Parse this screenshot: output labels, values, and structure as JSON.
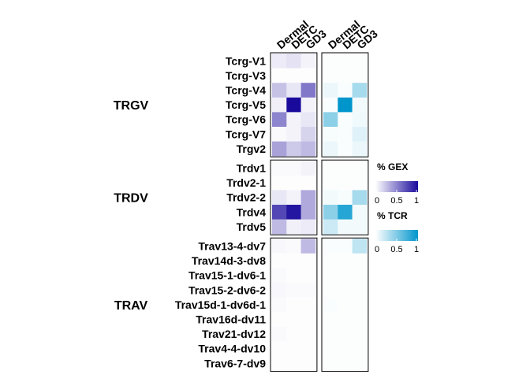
{
  "chart_data": {
    "type": "heatmap",
    "columns": [
      "Dermal",
      "DETC",
      "GD3"
    ],
    "groups": [
      {
        "label": "TRGV",
        "rows": [
          "Tcrg-V1",
          "Tcrg-V3",
          "Tcrg-V4",
          "Tcrg-V5",
          "Tcrg-V6",
          "Tcrg-V7",
          "Trgv2"
        ]
      },
      {
        "label": "TRDV",
        "rows": [
          "Trdv1",
          "Trdv2-1",
          "Trdv2-2",
          "Trdv4",
          "Trdv5"
        ]
      },
      {
        "label": "TRAV",
        "rows": [
          "Trav13-4-dv7",
          "Trav14d-3-dv8",
          "Trav15-1-dv6-1",
          "Trav15-2-dv6-2",
          "Trav15d-1-dv6d-1",
          "Trav16d-dv11",
          "Trav21-dv12",
          "Trav4-4-dv10",
          "Trav6-7-dv9"
        ]
      }
    ],
    "panels": [
      {
        "name": "% GEX",
        "color_low": "#ffffff",
        "color_high": "#1a0a9c",
        "range": [
          0,
          1
        ],
        "values": [
          [
            0.08,
            0.12,
            0.05
          ],
          [
            0.01,
            0.01,
            0.01
          ],
          [
            0.25,
            0.1,
            0.55
          ],
          [
            0.06,
            1.0,
            0.05
          ],
          [
            0.5,
            0.05,
            0.1
          ],
          [
            0.02,
            0.05,
            0.18
          ],
          [
            0.38,
            0.22,
            0.28
          ],
          [
            0.02,
            0.02,
            0.05
          ],
          [
            0.01,
            0.01,
            0.01
          ],
          [
            0.1,
            0.05,
            0.35
          ],
          [
            0.75,
            0.95,
            0.35
          ],
          [
            0.28,
            0.06,
            0.08
          ],
          [
            0.03,
            0.02,
            0.28
          ],
          [
            0.01,
            0.01,
            0.01
          ],
          [
            0.02,
            0.01,
            0.01
          ],
          [
            0.03,
            0.02,
            0.02
          ],
          [
            0.02,
            0.01,
            0.01
          ],
          [
            0.01,
            0.01,
            0.01
          ],
          [
            0.02,
            0.01,
            0.01
          ],
          [
            0.01,
            0.01,
            0.01
          ],
          [
            0.01,
            0.01,
            0.01
          ]
        ]
      },
      {
        "name": "% TCR",
        "color_low": "#ffffff",
        "color_high": "#0096cc",
        "range": [
          0,
          1
        ],
        "values": [
          [
            0.01,
            0.01,
            0.01
          ],
          [
            0.01,
            0.01,
            0.01
          ],
          [
            0.08,
            0.02,
            0.35
          ],
          [
            0.02,
            1.0,
            0.05
          ],
          [
            0.45,
            0.02,
            0.06
          ],
          [
            0.03,
            0.02,
            0.12
          ],
          [
            0.08,
            0.02,
            0.08
          ],
          [
            0.01,
            0.01,
            0.01
          ],
          [
            0.01,
            0.01,
            0.01
          ],
          [
            0.05,
            0.03,
            0.35
          ],
          [
            0.45,
            0.85,
            0.05
          ],
          [
            0.2,
            0.05,
            0.05
          ],
          [
            0.02,
            0.02,
            0.25
          ],
          [
            0.01,
            0.01,
            0.01
          ],
          [
            0.01,
            0.01,
            0.01
          ],
          [
            0.01,
            0.01,
            0.01
          ],
          [
            0.02,
            0.01,
            0.01
          ],
          [
            0.01,
            0.01,
            0.01
          ],
          [
            0.01,
            0.01,
            0.01
          ],
          [
            0.01,
            0.01,
            0.01
          ],
          [
            0.01,
            0.01,
            0.01
          ]
        ]
      }
    ],
    "legend_ticks": [
      "0",
      "0.5",
      "1"
    ]
  }
}
